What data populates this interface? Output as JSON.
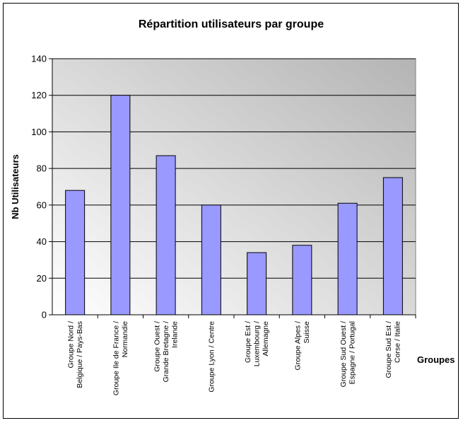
{
  "chart_data": {
    "type": "bar",
    "title": "Répartition utilisateurs par groupe",
    "xlabel": "Groupes",
    "ylabel": "Nb Utilisateurs",
    "ylim": [
      0,
      140
    ],
    "ytick_step": 20,
    "grid": true,
    "legend": "none",
    "bar_color": "#9999ff",
    "categories": [
      [
        "Groupe Nord /",
        "Belgique / Pays-Bas"
      ],
      [
        "Groupe Ile de France /",
        "Normandie"
      ],
      [
        "Groupe Ouest /",
        "Grande Bretagne /",
        "Irelande"
      ],
      [
        "Groupe Lyon / Centre"
      ],
      [
        "Groupe Est /",
        "Luxembourg /",
        "Allemagne"
      ],
      [
        "Groupe Alpes /",
        "Suisse"
      ],
      [
        "Groupe Sud Ouest /",
        "Espagne / Portugal"
      ],
      [
        "Groupe Sud Est /",
        "Corse / Italie"
      ]
    ],
    "values": [
      68,
      120,
      87,
      60,
      34,
      38,
      61,
      75
    ]
  }
}
